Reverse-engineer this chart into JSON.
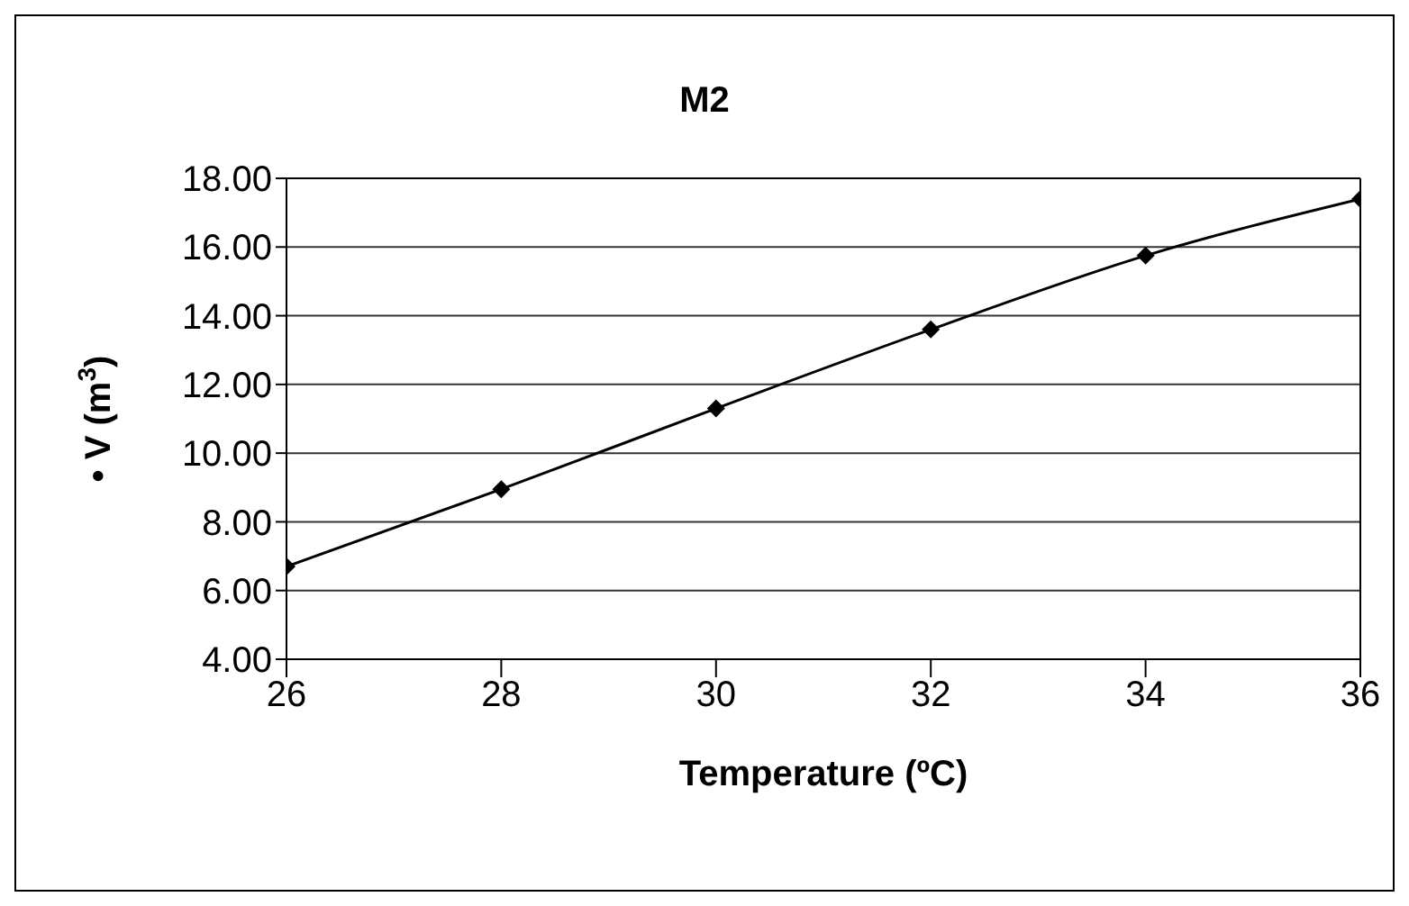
{
  "chart_data": {
    "type": "line",
    "title": "M2",
    "xlabel": "Temperature (ºC)",
    "ylabel": "• V (m$^{3}$)",
    "x": [
      26,
      28,
      30,
      32,
      34,
      36
    ],
    "series": [
      {
        "color": "#000000",
        "values": [
          6.7,
          8.95,
          11.3,
          13.6,
          15.75,
          17.4
        ]
      }
    ],
    "xlim": [
      26,
      36
    ],
    "xticks": [
      26,
      28,
      30,
      32,
      34,
      36
    ],
    "ylim": [
      4,
      18
    ],
    "yticks": [
      {
        "value": 4,
        "label": "4.00"
      },
      {
        "value": 6,
        "label": "6.00"
      },
      {
        "value": 8,
        "label": "8.00"
      },
      {
        "value": 10,
        "label": "10.00"
      },
      {
        "value": 12,
        "label": "12.00"
      },
      {
        "value": 14,
        "label": "14.00"
      },
      {
        "value": 16,
        "label": "16.00"
      },
      {
        "value": 18,
        "label": "18.00"
      }
    ],
    "grid": "y",
    "marker": "diamond",
    "line_style": "solid"
  }
}
